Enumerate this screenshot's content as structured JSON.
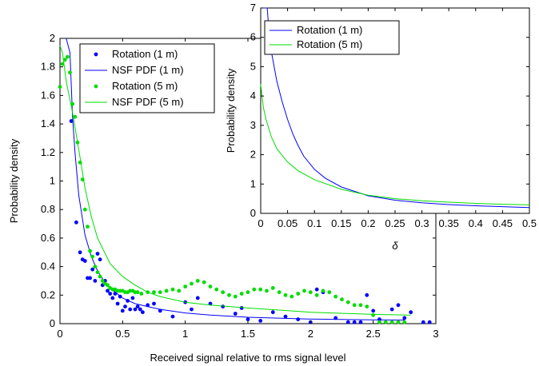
{
  "chart_data": [
    {
      "type": "scatter",
      "xlabel": "Received signal relative to rms signal level",
      "ylabel": "Probability density",
      "xlim": [
        0,
        3
      ],
      "ylim": [
        0,
        2
      ],
      "xticks": [
        "0",
        "0.5",
        "1",
        "1.5",
        "2",
        "2.5",
        "3"
      ],
      "yticks": [
        "0",
        "0.2",
        "0.4",
        "0.6",
        "0.8",
        "1",
        "1.2",
        "1.4",
        "1.6",
        "1.8",
        "2"
      ],
      "legend_position": "top-left",
      "grid": false,
      "series": [
        {
          "name": "Rotation (1 m)",
          "kind": "points",
          "color": "#0000ff",
          "x": [
            0.09,
            0.13,
            0.16,
            0.18,
            0.2,
            0.22,
            0.24,
            0.26,
            0.28,
            0.3,
            0.32,
            0.34,
            0.36,
            0.38,
            0.4,
            0.42,
            0.44,
            0.46,
            0.48,
            0.5,
            0.52,
            0.54,
            0.56,
            0.58,
            0.6,
            0.62,
            0.64,
            0.66,
            0.7,
            0.75,
            0.8,
            0.9,
            1.0,
            1.05,
            1.1,
            1.2,
            1.3,
            1.4,
            1.45,
            1.5,
            1.6,
            1.7,
            1.8,
            1.9,
            2.0,
            2.05,
            2.1,
            2.2,
            2.3,
            2.35,
            2.4,
            2.45,
            2.5,
            2.55,
            2.65,
            2.7,
            2.75,
            2.8,
            2.9,
            2.95
          ],
          "y": [
            1.42,
            0.71,
            0.5,
            0.45,
            0.44,
            0.32,
            0.32,
            0.38,
            0.3,
            0.49,
            0.45,
            0.27,
            0.3,
            0.23,
            0.21,
            0.18,
            0.21,
            0.14,
            0.19,
            0.09,
            0.12,
            0.16,
            0.1,
            0.18,
            0.1,
            0.12,
            0.1,
            0.08,
            0.13,
            0.14,
            0.09,
            0.05,
            0.15,
            0.1,
            0.18,
            0.14,
            0.12,
            0.07,
            0.11,
            0.03,
            0.02,
            0.08,
            0.05,
            0.03,
            0.01,
            0.24,
            0.22,
            0.04,
            0.01,
            0.01,
            0.01,
            0.2,
            0.09,
            0.03,
            0.1,
            0.13,
            0.04,
            0.08,
            0.01,
            0.01
          ]
        },
        {
          "name": "NSF PDF (1 m)",
          "kind": "line",
          "color": "#0000ff",
          "x": [
            0.05,
            0.08,
            0.1,
            0.12,
            0.15,
            0.2,
            0.25,
            0.3,
            0.35,
            0.4,
            0.5,
            0.6,
            0.7,
            0.8,
            1.0,
            1.2,
            1.5,
            2.0,
            2.5,
            2.75
          ],
          "y": [
            2.0,
            1.9,
            1.45,
            1.2,
            0.9,
            0.62,
            0.47,
            0.37,
            0.3,
            0.25,
            0.18,
            0.14,
            0.12,
            0.1,
            0.075,
            0.06,
            0.045,
            0.032,
            0.027,
            0.025
          ]
        },
        {
          "name": "Rotation (5 m)",
          "kind": "points",
          "color": "#00dd00",
          "x": [
            0.0,
            0.02,
            0.04,
            0.06,
            0.08,
            0.1,
            0.12,
            0.14,
            0.16,
            0.18,
            0.2,
            0.22,
            0.24,
            0.26,
            0.28,
            0.3,
            0.32,
            0.34,
            0.36,
            0.38,
            0.4,
            0.42,
            0.44,
            0.46,
            0.48,
            0.5,
            0.52,
            0.54,
            0.56,
            0.58,
            0.6,
            0.62,
            0.65,
            0.7,
            0.75,
            0.8,
            0.85,
            0.9,
            0.95,
            1.0,
            1.05,
            1.1,
            1.15,
            1.2,
            1.25,
            1.3,
            1.35,
            1.4,
            1.45,
            1.5,
            1.55,
            1.6,
            1.65,
            1.7,
            1.75,
            1.8,
            1.85,
            1.9,
            1.95,
            2.0,
            2.05,
            2.1,
            2.15,
            2.2,
            2.25,
            2.3,
            2.35,
            2.4,
            2.45,
            2.5,
            2.55,
            2.6,
            2.65,
            2.7,
            2.75
          ],
          "y": [
            1.66,
            1.82,
            1.85,
            1.87,
            1.76,
            1.54,
            1.45,
            1.27,
            1.13,
            1.01,
            0.8,
            0.68,
            0.51,
            0.47,
            0.4,
            0.36,
            0.33,
            0.3,
            0.28,
            0.27,
            0.25,
            0.24,
            0.24,
            0.23,
            0.23,
            0.23,
            0.22,
            0.22,
            0.23,
            0.23,
            0.22,
            0.22,
            0.21,
            0.22,
            0.22,
            0.22,
            0.23,
            0.24,
            0.23,
            0.26,
            0.28,
            0.3,
            0.29,
            0.26,
            0.24,
            0.22,
            0.2,
            0.19,
            0.21,
            0.22,
            0.24,
            0.24,
            0.23,
            0.25,
            0.22,
            0.2,
            0.19,
            0.21,
            0.23,
            0.22,
            0.2,
            0.23,
            0.22,
            0.19,
            0.17,
            0.15,
            0.13,
            0.13,
            0.12,
            0.06,
            0.01,
            0.01,
            0.01,
            0.01,
            0.01
          ]
        },
        {
          "name": "NSF PDF (5 m)",
          "kind": "line",
          "color": "#00dd00",
          "x": [
            0.0,
            0.02,
            0.05,
            0.1,
            0.15,
            0.2,
            0.25,
            0.3,
            0.4,
            0.5,
            0.6,
            0.7,
            0.8,
            1.0,
            1.2,
            1.5,
            2.0,
            2.5,
            2.8
          ],
          "y": [
            1.95,
            1.9,
            1.7,
            1.48,
            1.22,
            0.95,
            0.75,
            0.6,
            0.42,
            0.33,
            0.27,
            0.22,
            0.19,
            0.15,
            0.13,
            0.11,
            0.08,
            0.065,
            0.06
          ]
        }
      ]
    },
    {
      "type": "line",
      "xlabel": "δ",
      "ylabel": "Probability density",
      "xlim": [
        0,
        0.5
      ],
      "ylim": [
        0,
        7
      ],
      "xticks": [
        "0",
        "0.05",
        "0.1",
        "0.15",
        "0.2",
        "0.25",
        "0.3",
        "0.35",
        "0.4",
        "0.45",
        "0.5"
      ],
      "yticks": [
        "0",
        "1",
        "2",
        "3",
        "4",
        "5",
        "6",
        "7"
      ],
      "legend_position": "top-left",
      "grid": false,
      "series": [
        {
          "name": "Rotation (1 m)",
          "color": "#0000ff",
          "x": [
            0.0,
            0.012,
            0.015,
            0.02,
            0.03,
            0.04,
            0.05,
            0.06,
            0.07,
            0.08,
            0.1,
            0.12,
            0.15,
            0.2,
            0.25,
            0.3,
            0.35,
            0.4,
            0.45,
            0.5
          ],
          "y": [
            7.0,
            7.0,
            6.3,
            5.5,
            4.5,
            3.8,
            3.2,
            2.7,
            2.3,
            1.95,
            1.5,
            1.2,
            0.9,
            0.6,
            0.45,
            0.36,
            0.3,
            0.26,
            0.23,
            0.2
          ]
        },
        {
          "name": "Rotation (5 m)",
          "color": "#00dd00",
          "x": [
            0.0,
            0.005,
            0.01,
            0.02,
            0.03,
            0.05,
            0.07,
            0.1,
            0.15,
            0.2,
            0.25,
            0.3,
            0.35,
            0.4,
            0.45,
            0.5
          ],
          "y": [
            4.4,
            3.6,
            3.2,
            2.6,
            2.2,
            1.75,
            1.45,
            1.15,
            0.82,
            0.62,
            0.5,
            0.43,
            0.38,
            0.34,
            0.31,
            0.29
          ]
        }
      ]
    }
  ]
}
